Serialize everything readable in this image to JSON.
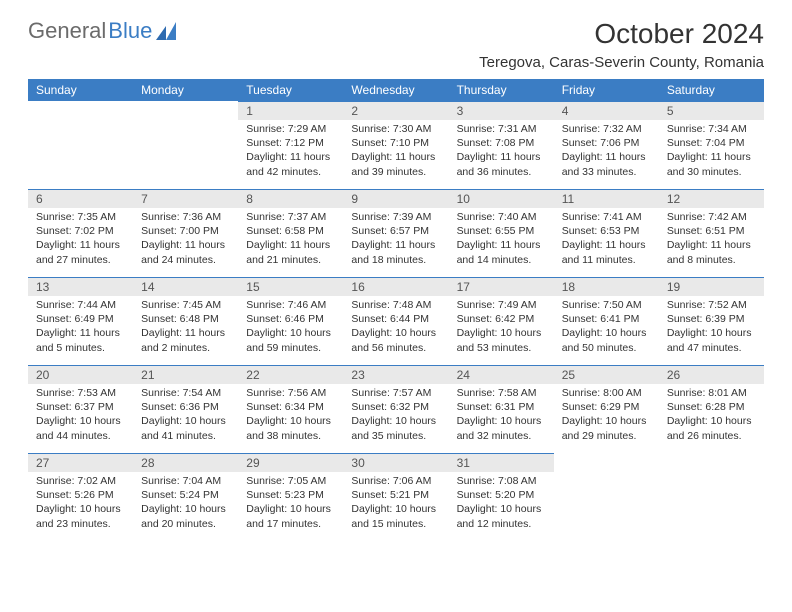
{
  "brand": {
    "part1": "General",
    "part2": "Blue"
  },
  "title": "October 2024",
  "location": "Teregova, Caras-Severin County, Romania",
  "dayHeaders": [
    "Sunday",
    "Monday",
    "Tuesday",
    "Wednesday",
    "Thursday",
    "Friday",
    "Saturday"
  ],
  "colors": {
    "headerBg": "#3b7dc4",
    "dayNumBg": "#e9e9e9",
    "dayNumBorder": "#3b7dc4",
    "text": "#333333"
  },
  "weeks": [
    [
      null,
      null,
      {
        "n": "1",
        "sr": "Sunrise: 7:29 AM",
        "ss": "Sunset: 7:12 PM",
        "dl": "Daylight: 11 hours and 42 minutes."
      },
      {
        "n": "2",
        "sr": "Sunrise: 7:30 AM",
        "ss": "Sunset: 7:10 PM",
        "dl": "Daylight: 11 hours and 39 minutes."
      },
      {
        "n": "3",
        "sr": "Sunrise: 7:31 AM",
        "ss": "Sunset: 7:08 PM",
        "dl": "Daylight: 11 hours and 36 minutes."
      },
      {
        "n": "4",
        "sr": "Sunrise: 7:32 AM",
        "ss": "Sunset: 7:06 PM",
        "dl": "Daylight: 11 hours and 33 minutes."
      },
      {
        "n": "5",
        "sr": "Sunrise: 7:34 AM",
        "ss": "Sunset: 7:04 PM",
        "dl": "Daylight: 11 hours and 30 minutes."
      }
    ],
    [
      {
        "n": "6",
        "sr": "Sunrise: 7:35 AM",
        "ss": "Sunset: 7:02 PM",
        "dl": "Daylight: 11 hours and 27 minutes."
      },
      {
        "n": "7",
        "sr": "Sunrise: 7:36 AM",
        "ss": "Sunset: 7:00 PM",
        "dl": "Daylight: 11 hours and 24 minutes."
      },
      {
        "n": "8",
        "sr": "Sunrise: 7:37 AM",
        "ss": "Sunset: 6:58 PM",
        "dl": "Daylight: 11 hours and 21 minutes."
      },
      {
        "n": "9",
        "sr": "Sunrise: 7:39 AM",
        "ss": "Sunset: 6:57 PM",
        "dl": "Daylight: 11 hours and 18 minutes."
      },
      {
        "n": "10",
        "sr": "Sunrise: 7:40 AM",
        "ss": "Sunset: 6:55 PM",
        "dl": "Daylight: 11 hours and 14 minutes."
      },
      {
        "n": "11",
        "sr": "Sunrise: 7:41 AM",
        "ss": "Sunset: 6:53 PM",
        "dl": "Daylight: 11 hours and 11 minutes."
      },
      {
        "n": "12",
        "sr": "Sunrise: 7:42 AM",
        "ss": "Sunset: 6:51 PM",
        "dl": "Daylight: 11 hours and 8 minutes."
      }
    ],
    [
      {
        "n": "13",
        "sr": "Sunrise: 7:44 AM",
        "ss": "Sunset: 6:49 PM",
        "dl": "Daylight: 11 hours and 5 minutes."
      },
      {
        "n": "14",
        "sr": "Sunrise: 7:45 AM",
        "ss": "Sunset: 6:48 PM",
        "dl": "Daylight: 11 hours and 2 minutes."
      },
      {
        "n": "15",
        "sr": "Sunrise: 7:46 AM",
        "ss": "Sunset: 6:46 PM",
        "dl": "Daylight: 10 hours and 59 minutes."
      },
      {
        "n": "16",
        "sr": "Sunrise: 7:48 AM",
        "ss": "Sunset: 6:44 PM",
        "dl": "Daylight: 10 hours and 56 minutes."
      },
      {
        "n": "17",
        "sr": "Sunrise: 7:49 AM",
        "ss": "Sunset: 6:42 PM",
        "dl": "Daylight: 10 hours and 53 minutes."
      },
      {
        "n": "18",
        "sr": "Sunrise: 7:50 AM",
        "ss": "Sunset: 6:41 PM",
        "dl": "Daylight: 10 hours and 50 minutes."
      },
      {
        "n": "19",
        "sr": "Sunrise: 7:52 AM",
        "ss": "Sunset: 6:39 PM",
        "dl": "Daylight: 10 hours and 47 minutes."
      }
    ],
    [
      {
        "n": "20",
        "sr": "Sunrise: 7:53 AM",
        "ss": "Sunset: 6:37 PM",
        "dl": "Daylight: 10 hours and 44 minutes."
      },
      {
        "n": "21",
        "sr": "Sunrise: 7:54 AM",
        "ss": "Sunset: 6:36 PM",
        "dl": "Daylight: 10 hours and 41 minutes."
      },
      {
        "n": "22",
        "sr": "Sunrise: 7:56 AM",
        "ss": "Sunset: 6:34 PM",
        "dl": "Daylight: 10 hours and 38 minutes."
      },
      {
        "n": "23",
        "sr": "Sunrise: 7:57 AM",
        "ss": "Sunset: 6:32 PM",
        "dl": "Daylight: 10 hours and 35 minutes."
      },
      {
        "n": "24",
        "sr": "Sunrise: 7:58 AM",
        "ss": "Sunset: 6:31 PM",
        "dl": "Daylight: 10 hours and 32 minutes."
      },
      {
        "n": "25",
        "sr": "Sunrise: 8:00 AM",
        "ss": "Sunset: 6:29 PM",
        "dl": "Daylight: 10 hours and 29 minutes."
      },
      {
        "n": "26",
        "sr": "Sunrise: 8:01 AM",
        "ss": "Sunset: 6:28 PM",
        "dl": "Daylight: 10 hours and 26 minutes."
      }
    ],
    [
      {
        "n": "27",
        "sr": "Sunrise: 7:02 AM",
        "ss": "Sunset: 5:26 PM",
        "dl": "Daylight: 10 hours and 23 minutes."
      },
      {
        "n": "28",
        "sr": "Sunrise: 7:04 AM",
        "ss": "Sunset: 5:24 PM",
        "dl": "Daylight: 10 hours and 20 minutes."
      },
      {
        "n": "29",
        "sr": "Sunrise: 7:05 AM",
        "ss": "Sunset: 5:23 PM",
        "dl": "Daylight: 10 hours and 17 minutes."
      },
      {
        "n": "30",
        "sr": "Sunrise: 7:06 AM",
        "ss": "Sunset: 5:21 PM",
        "dl": "Daylight: 10 hours and 15 minutes."
      },
      {
        "n": "31",
        "sr": "Sunrise: 7:08 AM",
        "ss": "Sunset: 5:20 PM",
        "dl": "Daylight: 10 hours and 12 minutes."
      },
      null,
      null
    ]
  ]
}
